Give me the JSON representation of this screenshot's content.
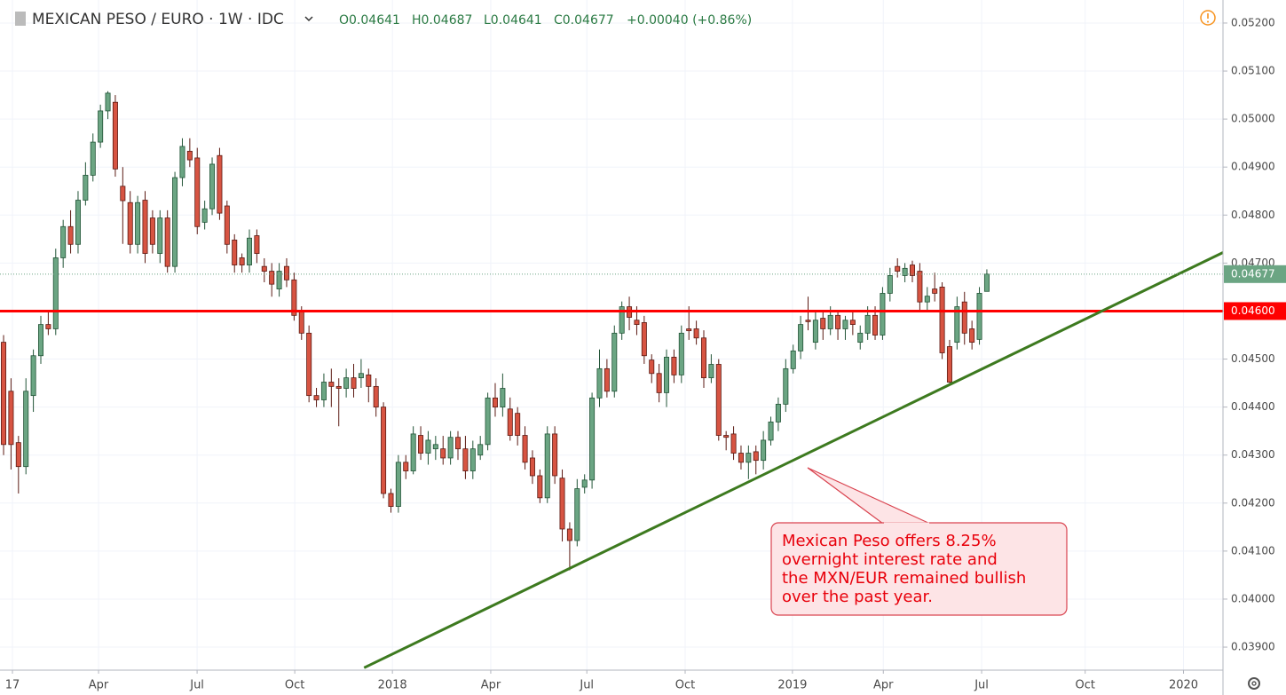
{
  "chart_data": {
    "type": "candlestick",
    "title": "MEXICAN PESO / EURO · 1W · IDC",
    "legend_ohlc": [
      "O0.04641",
      "H0.04687",
      "L0.04641",
      "C0.04677"
    ],
    "change": "+0.00040 (+0.86%)",
    "up_color": "#6ba583",
    "down_color": "#d75442",
    "open": [
      0.04535,
      0.04433,
      0.04326,
      0.04276,
      0.04424,
      0.04507,
      0.04572,
      0.04563,
      0.04711,
      0.04776,
      0.04739,
      0.04831,
      0.04883,
      0.04952,
      0.05017,
      0.05035,
      0.0486,
      0.04826,
      0.04739,
      0.04831,
      0.04794,
      0.0472,
      0.04794,
      0.04693,
      0.04878,
      0.04933,
      0.04919,
      0.04785,
      0.04813,
      0.04924,
      0.04819,
      0.04748,
      0.04711,
      0.04696,
      0.04757,
      0.04693,
      0.04683,
      0.04646,
      0.04693,
      0.04665,
      0.046,
      0.04554,
      0.04424,
      0.04415,
      0.04452,
      0.04443,
      0.04439,
      0.04461,
      0.04461,
      0.04467,
      0.04443,
      0.044,
      0.0422,
      0.04193,
      0.04285,
      0.04267,
      0.04341,
      0.04304,
      0.04313,
      0.04313,
      0.04294,
      0.04337,
      0.04313,
      0.04267,
      0.043,
      0.04322,
      0.04419,
      0.044,
      0.04396,
      0.04387,
      0.04341,
      0.04294,
      0.04257,
      0.04211,
      0.04344,
      0.04252,
      0.04146,
      0.04122,
      0.04233,
      0.04248,
      0.04419,
      0.0448,
      0.04433,
      0.04554,
      0.04609,
      0.04581,
      0.04576,
      0.04498,
      0.0447,
      0.0443,
      0.04504,
      0.04467,
      0.04563,
      0.04563,
      0.04544,
      0.04461,
      0.04489,
      0.04341,
      0.04344,
      0.04304,
      0.04285,
      0.04307,
      0.04289,
      0.04331,
      0.04369,
      0.04406,
      0.0448,
      0.04517,
      0.04581,
      0.04535,
      0.04585,
      0.04563,
      0.04591,
      0.04563,
      0.04581,
      0.04535,
      0.04554,
      0.04591,
      0.0455,
      0.04637,
      0.04693,
      0.04674,
      0.04696,
      0.04683,
      0.04619,
      0.04646,
      0.0465,
      0.04526,
      0.04535,
      0.04619,
      0.04563,
      0.04541,
      0.04641
    ],
    "high": [
      0.0455,
      0.0446,
      0.0434,
      0.0446,
      0.0452,
      0.0459,
      0.046,
      0.0473,
      0.0479,
      0.0481,
      0.0485,
      0.0491,
      0.0497,
      0.0503,
      0.05058,
      0.0505,
      0.049,
      0.0485,
      0.0484,
      0.0485,
      0.0481,
      0.0481,
      0.0481,
      0.0489,
      0.0496,
      0.0496,
      0.0494,
      0.0483,
      0.0492,
      0.0494,
      0.0483,
      0.0476,
      0.0472,
      0.0477,
      0.0477,
      0.0471,
      0.047,
      0.047,
      0.0471,
      0.0468,
      0.0461,
      0.0457,
      0.0444,
      0.0447,
      0.0448,
      0.0446,
      0.0448,
      0.0449,
      0.045,
      0.0448,
      0.0446,
      0.0441,
      0.0423,
      0.043,
      0.043,
      0.0436,
      0.0436,
      0.0435,
      0.0434,
      0.0434,
      0.0435,
      0.0435,
      0.0434,
      0.0433,
      0.0434,
      0.0443,
      0.0445,
      0.0447,
      0.0442,
      0.044,
      0.0436,
      0.0431,
      0.0427,
      0.0436,
      0.0436,
      0.0427,
      0.0416,
      0.0425,
      0.0426,
      0.0443,
      0.0452,
      0.045,
      0.0457,
      0.0462,
      0.0463,
      0.0461,
      0.0459,
      0.0451,
      0.0449,
      0.0452,
      0.0452,
      0.0457,
      0.0461,
      0.0458,
      0.0456,
      0.0451,
      0.045,
      0.0435,
      0.0436,
      0.0432,
      0.0432,
      0.0432,
      0.0435,
      0.0438,
      0.0442,
      0.045,
      0.0453,
      0.0459,
      0.0463,
      0.046,
      0.046,
      0.0461,
      0.046,
      0.0459,
      0.046,
      0.0457,
      0.0461,
      0.0461,
      0.0465,
      0.0469,
      0.0471,
      0.047,
      0.04705,
      0.047,
      0.0465,
      0.0468,
      0.0466,
      0.0454,
      0.0463,
      0.0464,
      0.0458,
      0.0465,
      0.04687
    ],
    "low": [
      0.043,
      0.0427,
      0.0422,
      0.0426,
      0.0439,
      0.0449,
      0.0455,
      0.0455,
      0.0469,
      0.0472,
      0.0472,
      0.0482,
      0.0487,
      0.0494,
      0.05,
      0.0488,
      0.0474,
      0.0472,
      0.0472,
      0.047,
      0.0472,
      0.047,
      0.0468,
      0.0468,
      0.0486,
      0.049,
      0.0476,
      0.0477,
      0.048,
      0.0479,
      0.0472,
      0.0468,
      0.0468,
      0.0468,
      0.047,
      0.0466,
      0.0463,
      0.0463,
      0.0465,
      0.0458,
      0.0454,
      0.0441,
      0.044,
      0.044,
      0.044,
      0.0436,
      0.0442,
      0.0442,
      0.0444,
      0.0441,
      0.0438,
      0.0421,
      0.0418,
      0.0418,
      0.0425,
      0.0426,
      0.0429,
      0.0428,
      0.0429,
      0.0428,
      0.0428,
      0.0429,
      0.0425,
      0.0425,
      0.0429,
      0.0431,
      0.0438,
      0.0438,
      0.0433,
      0.0432,
      0.0427,
      0.0424,
      0.042,
      0.042,
      0.0424,
      0.0412,
      0.0406,
      0.0411,
      0.0422,
      0.0423,
      0.044,
      0.0442,
      0.0442,
      0.0454,
      0.0456,
      0.0455,
      0.0449,
      0.0445,
      0.0441,
      0.044,
      0.0445,
      0.0445,
      0.0454,
      0.0453,
      0.0444,
      0.0445,
      0.0433,
      0.0431,
      0.0429,
      0.0427,
      0.0425,
      0.0426,
      0.0427,
      0.0432,
      0.0435,
      0.0439,
      0.0447,
      0.045,
      0.0456,
      0.0452,
      0.0454,
      0.0455,
      0.0454,
      0.0454,
      0.0455,
      0.0452,
      0.0454,
      0.0454,
      0.0454,
      0.0462,
      0.0467,
      0.0466,
      0.0466,
      0.046,
      0.046,
      0.0462,
      0.045,
      0.0445,
      0.0452,
      0.0453,
      0.0452,
      0.0453,
      0.04641
    ],
    "close": [
      0.04322,
      0.04322,
      0.04276,
      0.04433,
      0.04507,
      0.04572,
      0.04563,
      0.04711,
      0.04776,
      0.04739,
      0.04831,
      0.04883,
      0.04952,
      0.05017,
      0.05054,
      0.04896,
      0.0483,
      0.04739,
      0.04826,
      0.0472,
      0.04739,
      0.04794,
      0.04693,
      0.04878,
      0.04943,
      0.04915,
      0.04776,
      0.04813,
      0.04906,
      0.04804,
      0.04739,
      0.04696,
      0.04696,
      0.04752,
      0.0472,
      0.04683,
      0.04656,
      0.04683,
      0.04665,
      0.04591,
      0.04554,
      0.04424,
      0.04415,
      0.04452,
      0.04443,
      0.04439,
      0.04461,
      0.04439,
      0.0447,
      0.04443,
      0.044,
      0.0422,
      0.04193,
      0.04285,
      0.04267,
      0.04344,
      0.04304,
      0.04331,
      0.04322,
      0.04294,
      0.04337,
      0.04313,
      0.04267,
      0.04313,
      0.04322,
      0.04419,
      0.044,
      0.04439,
      0.04341,
      0.04341,
      0.04285,
      0.04257,
      0.04211,
      0.04344,
      0.04257,
      0.04146,
      0.04122,
      0.0423,
      0.04248,
      0.04419,
      0.0448,
      0.04433,
      0.04554,
      0.04609,
      0.04587,
      0.04572,
      0.04507,
      0.0447,
      0.0443,
      0.04504,
      0.04467,
      0.04554,
      0.04559,
      0.04544,
      0.04461,
      0.04489,
      0.04341,
      0.04337,
      0.04304,
      0.04285,
      0.04304,
      0.04289,
      0.04331,
      0.04369,
      0.04406,
      0.0448,
      0.04517,
      0.04572,
      0.04578,
      0.04581,
      0.04563,
      0.04591,
      0.04563,
      0.04581,
      0.04572,
      0.04554,
      0.04591,
      0.0455,
      0.04637,
      0.04674,
      0.04683,
      0.04689,
      0.04674,
      0.04619,
      0.04631,
      0.04637,
      0.04513,
      0.04452,
      0.04609,
      0.04554,
      0.04535,
      0.04637,
      0.04677
    ],
    "xlim": [
      -0.48,
      163.7
    ],
    "xticks": [
      {
        "value": 1.19,
        "label": "17"
      },
      {
        "value": 12.75,
        "label": "Apr"
      },
      {
        "value": 25.98,
        "label": "Jul"
      },
      {
        "value": 39.09,
        "label": "Oct"
      },
      {
        "value": 52.2,
        "label": "2018"
      },
      {
        "value": 65.4,
        "label": "Apr"
      },
      {
        "value": 78.3,
        "label": "Jul"
      },
      {
        "value": 91.5,
        "label": "Oct"
      },
      {
        "value": 105.9,
        "label": "2019"
      },
      {
        "value": 118.1,
        "label": "Apr"
      },
      {
        "value": 131.3,
        "label": "Jul"
      },
      {
        "value": 145.2,
        "label": "Oct"
      },
      {
        "value": 158.4,
        "label": "2020"
      }
    ],
    "ylim": [
      0.03852,
      0.05248
    ],
    "yticks": [
      {
        "value": 0.039,
        "label": "0.03900"
      },
      {
        "value": 0.04,
        "label": "0.04000"
      },
      {
        "value": 0.041,
        "label": "0.04100"
      },
      {
        "value": 0.042,
        "label": "0.04200"
      },
      {
        "value": 0.043,
        "label": "0.04300"
      },
      {
        "value": 0.044,
        "label": "0.04400"
      },
      {
        "value": 0.045,
        "label": "0.04500"
      },
      {
        "value": 0.046,
        "label": "0.04600"
      },
      {
        "value": 0.047,
        "label": "0.04700"
      },
      {
        "value": 0.048,
        "label": "0.04800"
      },
      {
        "value": 0.049,
        "label": "0.04900"
      },
      {
        "value": 0.05,
        "label": "0.05000"
      },
      {
        "value": 0.051,
        "label": "0.05100"
      },
      {
        "value": 0.052,
        "label": "0.05200"
      }
    ],
    "grid": true,
    "hline": {
      "value": 0.046,
      "label": "0.04600",
      "color": "#ff0000"
    },
    "trendline": {
      "x": [
        48.4,
        163.7
      ],
      "y": [
        0.03857,
        0.04722
      ],
      "color": "#3d7a1f"
    },
    "annotation": [
      "Mexican Peso offers 8.25%",
      "overnight interest rate and",
      "the MXN/EUR remained bullish",
      "over the past year."
    ]
  }
}
